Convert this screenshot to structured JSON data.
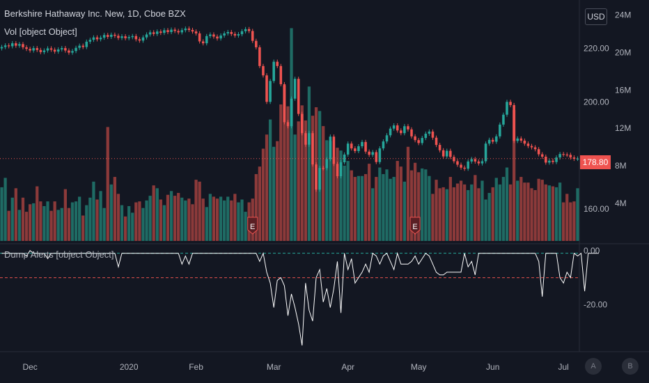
{
  "header": {
    "title": "Berkshire Hathaway Inc. New, 1D, Cboe BZX",
    "volume_label": "Vol [object Object]",
    "indicator_label": "Dump Alerts [object Object]",
    "currency_button": "USD",
    "last_price": "178.80"
  },
  "buttons": {
    "auto": "A",
    "log": "B"
  },
  "colors": {
    "background": "#131722",
    "up": "#26a69a",
    "down": "#ef5350",
    "up_vol": "#1f6b64",
    "down_vol": "#8c3a3a",
    "grid": "#1e222d",
    "indicator_line": "#ffffff",
    "green_level": "#26a69a",
    "red_level": "#ef5350"
  },
  "chart_data": [
    {
      "type": "line",
      "title": "Berkshire Hathaway Inc. New, 1D, Cboe BZX",
      "x_tick_labels": [
        "Dec",
        "2020",
        "Feb",
        "Mar",
        "Apr",
        "May",
        "Jun",
        "Jul"
      ],
      "y_tick_labels": [
        "220.00",
        "200.00",
        "160.00"
      ],
      "ylim": [
        148,
        236
      ],
      "last_value": 178.8,
      "series": [
        {
          "values": [
            220.5,
            221.1,
            220.8,
            221.9,
            221.0,
            221.6,
            220.4,
            219.8,
            219.2,
            220.1,
            219.4,
            218.6,
            219.2,
            220.0,
            219.5,
            218.8,
            219.6,
            220.1,
            219.2,
            218.4,
            219.0,
            220.2,
            221.0,
            220.5,
            222.5,
            223.2,
            224.1,
            223.4,
            224.0,
            225.0,
            224.3,
            225.1,
            224.7,
            223.9,
            224.5,
            223.8,
            224.2,
            224.6,
            223.4,
            222.9,
            224.1,
            225.2,
            226.0,
            225.4,
            226.3,
            225.8,
            226.8,
            226.1,
            227.0,
            226.5,
            226.0,
            226.8,
            227.4,
            226.9,
            226.3,
            225.6,
            222.6,
            221.9,
            224.6,
            225.2,
            224.4,
            223.7,
            224.8,
            225.6,
            226.1,
            225.4,
            224.8,
            225.3,
            226.4,
            227.2,
            226.5,
            222.8,
            220.4,
            213.4,
            209.9,
            200.0,
            207.8,
            215.0,
            213.4,
            206.6,
            192.4,
            190.9,
            201.2,
            208.6,
            195.5,
            188.3,
            184.0,
            188.3,
            176.6,
            167.2,
            175.3,
            175.2,
            178.6,
            187.0,
            176.8,
            172.2,
            177.4,
            180.3,
            184.4,
            182.6,
            181.6,
            183.4,
            185.0,
            181.4,
            180.2,
            181.2,
            177.5,
            182.6,
            185.2,
            187.5,
            190.0,
            191.2,
            189.3,
            188.3,
            190.9,
            189.7,
            187.1,
            185.7,
            184.6,
            186.5,
            188.1,
            188.9,
            186.6,
            183.9,
            181.9,
            179.6,
            181.7,
            179.4,
            177.8,
            176.5,
            175.4,
            175.0,
            177.7,
            178.6,
            177.7,
            177.0,
            177.8,
            184.4,
            185.8,
            185.1,
            187.1,
            191.5,
            195.2,
            200.0,
            198.8,
            185.4,
            186.3,
            185.5,
            184.4,
            183.5,
            183.0,
            182.3,
            180.4,
            179.5,
            177.3,
            178.0,
            177.5,
            179.2,
            180.5,
            180.3,
            180.2,
            179.2,
            178.7,
            178.8
          ]
        }
      ]
    },
    {
      "type": "bar",
      "title": "Vol [object Object]",
      "y_tick_labels": [
        "24M",
        "20M",
        "16M",
        "12M",
        "8M",
        "4M"
      ],
      "ylim": [
        0,
        25
      ],
      "series": [
        {
          "name": "Vol",
          "values": [
            5.7,
            6.7,
            3.2,
            4.6,
            5.6,
            3.3,
            4.6,
            3.1,
            3.9,
            4.0,
            5.8,
            4.2,
            3.7,
            4.2,
            3.2,
            4.2,
            3.3,
            3.5,
            5.5,
            3.5,
            4.1,
            4.2,
            4.7,
            2.7,
            3.8,
            4.6,
            6.3,
            4.4,
            5.3,
            3.5,
            12.1,
            6.0,
            6.8,
            5.0,
            3.8,
            2.6,
            3.7,
            3.0,
            4.1,
            4.2,
            3.5,
            4.3,
            4.8,
            5.9,
            5.6,
            4.4,
            3.8,
            4.9,
            5.3,
            4.8,
            5.1,
            4.6,
            4.3,
            4.5,
            3.9,
            6.5,
            6.3,
            4.5,
            3.6,
            5.0,
            4.7,
            4.5,
            4.7,
            4.3,
            4.7,
            4.3,
            5.0,
            4.1,
            4.4,
            3.1,
            4.1,
            4.5,
            7.1,
            7.9,
            9.8,
            11.3,
            12.9,
            10.0,
            10.6,
            14.5,
            16.5,
            14.3,
            22.6,
            11.3,
            12.7,
            14.4,
            12.8,
            16.4,
            13.3,
            14.2,
            13.8,
            12.2,
            10.7,
            10.6,
            8.9,
            9.9,
            9.6,
            8.0,
            8.5,
            7.5,
            6.8,
            6.9,
            6.9,
            7.1,
            8.2,
            5.6,
            6.8,
            7.8,
            7.1,
            7.6,
            6.6,
            6.8,
            8.5,
            7.9,
            6.3,
            10.0,
            7.5,
            8.3,
            7.3,
            7.7,
            7.6,
            6.9,
            5.0,
            6.5,
            5.6,
            5.7,
            5.5,
            6.8,
            5.7,
            6.1,
            6.4,
            6.0,
            5.4,
            6.0,
            7.0,
            5.6,
            6.4,
            4.4,
            5.1,
            5.7,
            6.7,
            6.0,
            6.8,
            7.8,
            6.0,
            13.9,
            6.4,
            6.8,
            6.2,
            6.2,
            5.6,
            5.4,
            6.6,
            6.5,
            6.0,
            5.9,
            5.8,
            5.7,
            6.2,
            4.1,
            5.0,
            4.1,
            4.2,
            5.6
          ]
        }
      ]
    },
    {
      "type": "line",
      "title": "Dump Alerts [object Object]",
      "y_tick_labels": [
        "0.00",
        "-20.00"
      ],
      "ylim": [
        -36,
        2
      ],
      "reference_lines": [
        -1,
        -10
      ],
      "series": [
        {
          "name": "Dump Alerts",
          "values": [
            -1,
            -1,
            -1,
            -1,
            -1,
            -1,
            -1,
            -2,
            0,
            -1,
            -1,
            -1,
            -1,
            -3,
            -1,
            -1,
            -1,
            -1,
            -1,
            -1,
            -1,
            -1,
            -1,
            -1,
            -1,
            -1,
            -1,
            -1,
            -1,
            -1,
            -1,
            -1,
            -1,
            -6,
            -1,
            -1,
            -1,
            -1,
            -1,
            -1,
            -1,
            -1,
            -1,
            -1,
            -1,
            -1,
            -1,
            -1,
            -1,
            -1,
            -1,
            -5,
            -2,
            -5,
            -1,
            -1,
            -1,
            -1,
            -1,
            -1,
            -1,
            -1,
            -1,
            -1,
            -1,
            -1,
            -1,
            -1,
            -1,
            -1,
            -1,
            -1,
            -1,
            -4,
            -1,
            -8,
            -12,
            -21,
            -11,
            -10,
            -13,
            -24,
            -16,
            -21,
            -27,
            -35,
            -12,
            -22,
            -26,
            -10,
            -7,
            -19,
            -14,
            -21,
            -14,
            -4,
            -23,
            -1,
            -7,
            -3,
            -12,
            -10,
            -8,
            -5,
            -8,
            -1,
            -2,
            -5,
            -2,
            -1,
            -4,
            -7,
            -1,
            -5,
            -5,
            -5,
            -4,
            -2,
            -5,
            -3,
            -1,
            -2,
            -5,
            -8,
            -9,
            -9,
            -8,
            -8,
            -8,
            -8,
            -8,
            -1,
            -6,
            -4,
            -9,
            -1,
            -1,
            -1,
            -1,
            -1,
            -1,
            -1,
            -1,
            -1,
            -1,
            -1,
            -1,
            -1,
            -1,
            -1,
            -1,
            -1,
            -4,
            -17,
            -1,
            -1,
            -1,
            -1,
            -10,
            -12,
            -8,
            -10,
            -1,
            -2,
            -1,
            -15,
            -1,
            -1,
            -1,
            -1
          ]
        }
      ]
    }
  ],
  "earnings_markers": [
    "E",
    "E"
  ]
}
